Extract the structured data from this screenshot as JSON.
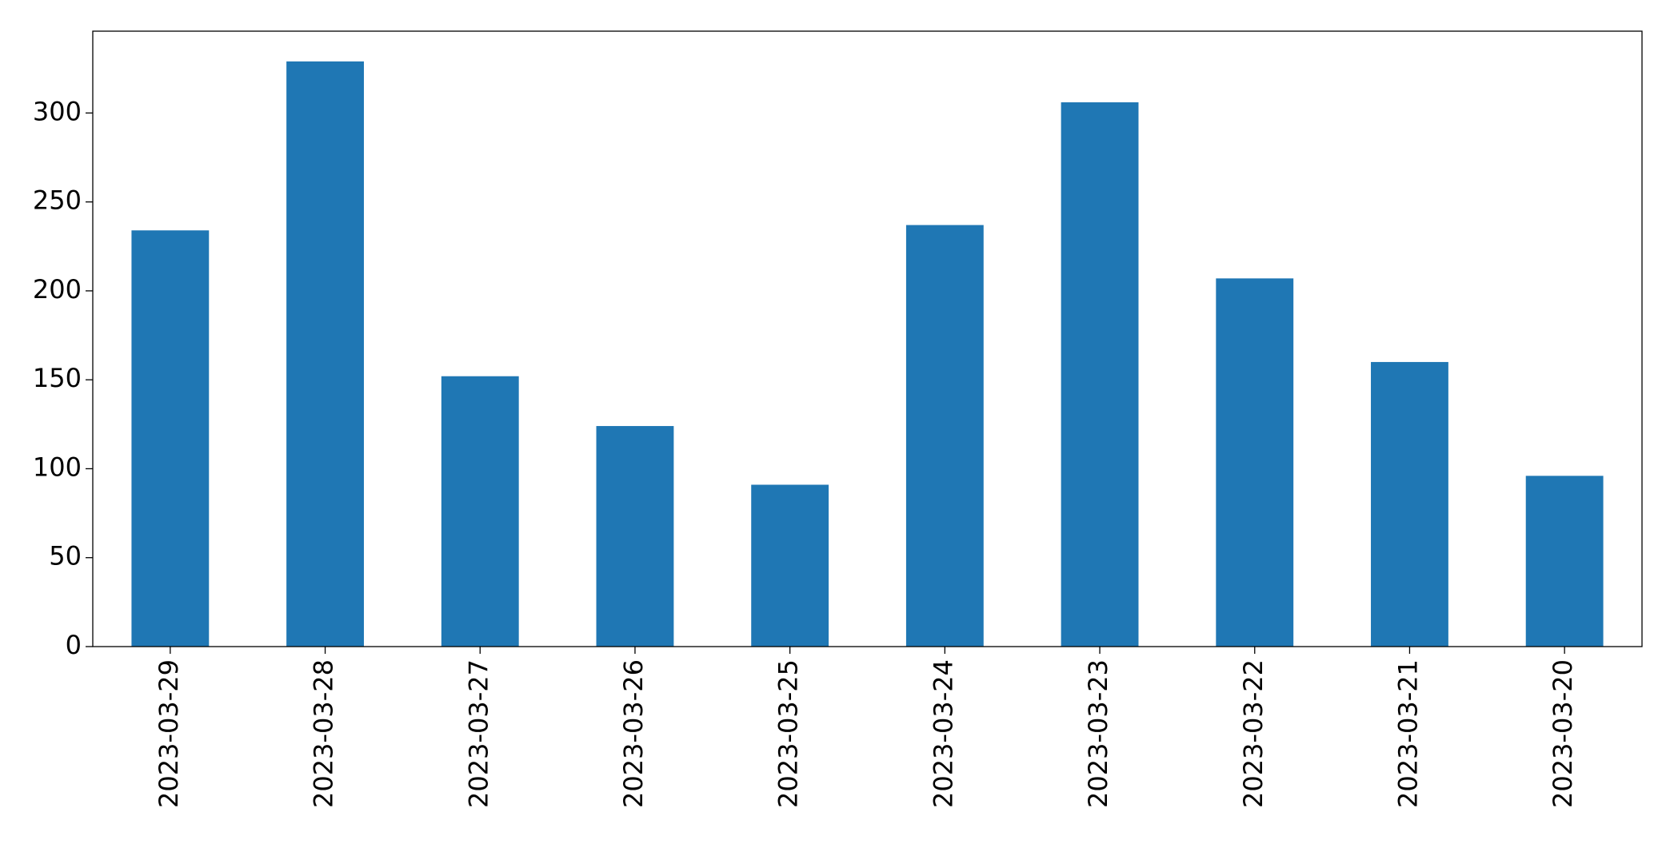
{
  "chart_data": {
    "type": "bar",
    "categories": [
      "2023-03-29",
      "2023-03-28",
      "2023-03-27",
      "2023-03-26",
      "2023-03-25",
      "2023-03-24",
      "2023-03-23",
      "2023-03-22",
      "2023-03-21",
      "2023-03-20"
    ],
    "values": [
      234,
      329,
      152,
      124,
      91,
      237,
      306,
      207,
      160,
      96
    ],
    "color": "#1f77b4",
    "ylim": [
      0,
      346
    ],
    "yticks": [
      0,
      50,
      100,
      150,
      200,
      250,
      300
    ],
    "grid": false
  }
}
